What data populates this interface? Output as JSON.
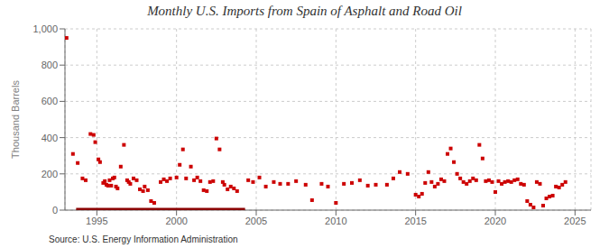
{
  "chart_data": {
    "type": "scatter",
    "title": "Monthly U.S. Imports from Spain of Asphalt and Road Oil",
    "y_label": "Thousand Barrels",
    "source": "Source: U.S. Energy Information Administration",
    "xlim": [
      1993.0,
      2026.0
    ],
    "xticks": [
      1995,
      2000,
      2005,
      2010,
      2015,
      2020,
      2025
    ],
    "ylim": [
      0,
      1000
    ],
    "yticks": [
      0,
      200,
      400,
      600,
      800,
      {
        "value": 1000,
        "label": "1,000"
      }
    ],
    "grid": true,
    "series": [
      {
        "type": "line",
        "color": "#8b0000",
        "line_style": "solid",
        "x": [
          1993.7,
          2004.3
        ],
        "values": [
          2,
          2
        ]
      },
      {
        "type": "scatter",
        "color": "#cc0000",
        "marker": "square",
        "x": [
          1993.1,
          1993.5,
          1993.8,
          1994.1,
          1994.3,
          1994.6,
          1994.8,
          1994.9,
          1995.1,
          1995.2,
          1995.4,
          1995.5,
          1995.6,
          1995.7,
          1995.8,
          1995.9,
          1996.0,
          1996.1,
          1996.2,
          1996.3,
          1996.5,
          1996.7,
          1996.9,
          1997.0,
          1997.1,
          1997.3,
          1997.5,
          1997.7,
          1997.9,
          1998.0,
          1998.2,
          1998.4,
          1998.6,
          1999.0,
          1999.2,
          1999.4,
          1999.6,
          2000.0,
          2000.2,
          2000.4,
          2000.6,
          2000.9,
          2001.1,
          2001.3,
          2001.5,
          2001.7,
          2001.9,
          2002.1,
          2002.3,
          2002.5,
          2002.7,
          2002.9,
          2003.0,
          2003.2,
          2003.4,
          2003.6,
          2003.8,
          2004.5,
          2004.8,
          2005.2,
          2005.6,
          2006.1,
          2006.5,
          2007.0,
          2007.5,
          2008.1,
          2008.5,
          2009.1,
          2009.5,
          2010.0,
          2010.5,
          2011.0,
          2011.5,
          2012.0,
          2012.5,
          2013.2,
          2013.6,
          2014.0,
          2014.5,
          2015.0,
          2015.2,
          2015.4,
          2015.6,
          2015.8,
          2016.0,
          2016.2,
          2016.4,
          2016.6,
          2016.8,
          2017.0,
          2017.2,
          2017.4,
          2017.6,
          2017.8,
          2018.0,
          2018.2,
          2018.4,
          2018.6,
          2018.8,
          2019.0,
          2019.2,
          2019.4,
          2019.6,
          2019.8,
          2020.0,
          2020.2,
          2020.4,
          2020.6,
          2020.8,
          2021.0,
          2021.2,
          2021.4,
          2021.6,
          2021.8,
          2022.0,
          2022.2,
          2022.4,
          2022.6,
          2022.8,
          2023.0,
          2023.2,
          2023.4,
          2023.6,
          2023.8,
          2024.0,
          2024.2,
          2024.4
        ],
        "values": [
          950,
          310,
          260,
          175,
          165,
          420,
          415,
          375,
          280,
          265,
          150,
          160,
          140,
          135,
          165,
          135,
          175,
          180,
          130,
          120,
          240,
          360,
          165,
          155,
          145,
          175,
          165,
          115,
          105,
          130,
          110,
          50,
          40,
          155,
          170,
          160,
          175,
          180,
          250,
          335,
          175,
          240,
          165,
          180,
          160,
          110,
          105,
          155,
          160,
          395,
          335,
          155,
          140,
          115,
          130,
          120,
          105,
          165,
          155,
          180,
          130,
          155,
          145,
          145,
          160,
          140,
          55,
          145,
          130,
          40,
          145,
          150,
          165,
          135,
          140,
          140,
          175,
          210,
          200,
          85,
          75,
          90,
          150,
          210,
          155,
          130,
          145,
          170,
          160,
          310,
          340,
          265,
          200,
          175,
          155,
          145,
          160,
          175,
          165,
          360,
          285,
          160,
          165,
          155,
          100,
          160,
          145,
          155,
          160,
          155,
          165,
          170,
          145,
          140,
          50,
          30,
          15,
          155,
          145,
          25,
          65,
          75,
          80,
          130,
          125,
          140,
          155
        ]
      }
    ]
  }
}
